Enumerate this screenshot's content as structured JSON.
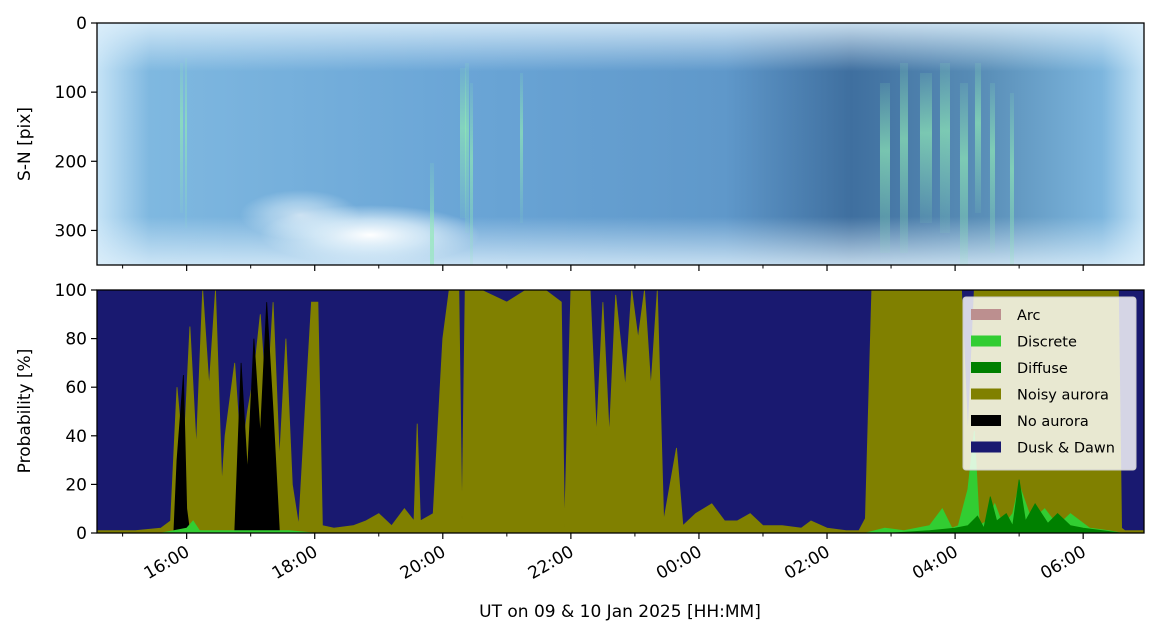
{
  "chart_data": [
    {
      "type": "heatmap",
      "description_free": true,
      "ylabel": "S-N [pix]",
      "ylim": [
        350,
        0
      ],
      "yticks": [
        0,
        100,
        200,
        300
      ],
      "colors": {
        "sky_light": "#a9d3ee",
        "sky_mid": "#5d9bd0",
        "sky_dark": "#3f6f9f",
        "aurora_green": "#7fe7a6",
        "glow_white": "#ffffff"
      }
    },
    {
      "type": "area",
      "ylabel": "Probability [%]",
      "xlabel": "UT on 09 & 10 Jan 2025 [HH:MM]",
      "ylim": [
        0,
        100
      ],
      "yticks": [
        0,
        20,
        40,
        60,
        80,
        100
      ],
      "xlim_hours": [
        14.6,
        30.95
      ],
      "xticks": [
        {
          "h": 16,
          "label": "16:00"
        },
        {
          "h": 18,
          "label": "18:00"
        },
        {
          "h": 20,
          "label": "20:00"
        },
        {
          "h": 22,
          "label": "22:00"
        },
        {
          "h": 24,
          "label": "00:00"
        },
        {
          "h": 26,
          "label": "02:00"
        },
        {
          "h": 28,
          "label": "04:00"
        },
        {
          "h": 30,
          "label": "06:00"
        }
      ],
      "legend": {
        "position": "upper right",
        "entries": [
          {
            "label": "Arc",
            "color": "#bc8f8f"
          },
          {
            "label": "Discrete",
            "color": "#32cd32"
          },
          {
            "label": "Diffuse",
            "color": "#008000"
          },
          {
            "label": "Noisy aurora",
            "color": "#808000"
          },
          {
            "label": "No aurora",
            "color": "#000000"
          },
          {
            "label": "Dusk & Dawn",
            "color": "#191970"
          }
        ]
      },
      "series": [
        {
          "name": "Noisy aurora",
          "color": "#808000",
          "points": [
            [
              14.6,
              1
            ],
            [
              15.2,
              1
            ],
            [
              15.6,
              2
            ],
            [
              15.75,
              5
            ],
            [
              15.85,
              60
            ],
            [
              15.95,
              30
            ],
            [
              16.05,
              85
            ],
            [
              16.15,
              35
            ],
            [
              16.25,
              100
            ],
            [
              16.35,
              60
            ],
            [
              16.45,
              100
            ],
            [
              16.55,
              20
            ],
            [
              16.6,
              40
            ],
            [
              16.75,
              70
            ],
            [
              16.85,
              30
            ],
            [
              16.95,
              50
            ],
            [
              17.05,
              65
            ],
            [
              17.15,
              90
            ],
            [
              17.25,
              50
            ],
            [
              17.35,
              95
            ],
            [
              17.45,
              30
            ],
            [
              17.55,
              80
            ],
            [
              17.65,
              20
            ],
            [
              17.75,
              3
            ],
            [
              17.85,
              50
            ],
            [
              17.95,
              95
            ],
            [
              18.05,
              95
            ],
            [
              18.12,
              3
            ],
            [
              18.3,
              2
            ],
            [
              18.6,
              3
            ],
            [
              18.8,
              5
            ],
            [
              19.0,
              8
            ],
            [
              19.2,
              3
            ],
            [
              19.4,
              10
            ],
            [
              19.55,
              5
            ],
            [
              19.6,
              45
            ],
            [
              19.65,
              5
            ],
            [
              19.85,
              8
            ],
            [
              20.0,
              80
            ],
            [
              20.1,
              100
            ],
            [
              20.25,
              100
            ],
            [
              20.3,
              5
            ],
            [
              20.35,
              100
            ],
            [
              20.6,
              100
            ],
            [
              21.0,
              95
            ],
            [
              21.3,
              100
            ],
            [
              21.6,
              100
            ],
            [
              21.85,
              95
            ],
            [
              21.9,
              2
            ],
            [
              22.0,
              100
            ],
            [
              22.3,
              100
            ],
            [
              22.4,
              40
            ],
            [
              22.5,
              95
            ],
            [
              22.6,
              40
            ],
            [
              22.7,
              98
            ],
            [
              22.85,
              60
            ],
            [
              22.95,
              100
            ],
            [
              23.05,
              80
            ],
            [
              23.15,
              100
            ],
            [
              23.25,
              60
            ],
            [
              23.35,
              100
            ],
            [
              23.45,
              5
            ],
            [
              23.65,
              35
            ],
            [
              23.75,
              3
            ],
            [
              23.95,
              8
            ],
            [
              24.2,
              12
            ],
            [
              24.4,
              5
            ],
            [
              24.6,
              5
            ],
            [
              24.8,
              8
            ],
            [
              25.0,
              3
            ],
            [
              25.3,
              3
            ],
            [
              25.6,
              2
            ],
            [
              25.75,
              5
            ],
            [
              26.0,
              2
            ],
            [
              26.3,
              1
            ],
            [
              26.5,
              1
            ],
            [
              26.6,
              6
            ],
            [
              26.7,
              100
            ],
            [
              27.0,
              100
            ],
            [
              27.3,
              100
            ],
            [
              27.6,
              100
            ],
            [
              27.9,
              100
            ],
            [
              28.1,
              100
            ],
            [
              28.2,
              40
            ],
            [
              28.3,
              100
            ],
            [
              28.6,
              100
            ],
            [
              28.9,
              100
            ],
            [
              29.2,
              100
            ],
            [
              29.5,
              100
            ],
            [
              29.8,
              100
            ],
            [
              30.1,
              100
            ],
            [
              30.4,
              100
            ],
            [
              30.55,
              100
            ],
            [
              30.6,
              2
            ],
            [
              30.65,
              1
            ],
            [
              30.95,
              1
            ]
          ]
        },
        {
          "name": "No aurora",
          "color": "#000000",
          "points": [
            [
              15.8,
              0
            ],
            [
              15.85,
              30
            ],
            [
              15.95,
              65
            ],
            [
              16.0,
              10
            ],
            [
              16.05,
              0
            ],
            [
              16.75,
              0
            ],
            [
              16.85,
              70
            ],
            [
              16.95,
              25
            ],
            [
              17.05,
              80
            ],
            [
              17.15,
              40
            ],
            [
              17.25,
              95
            ],
            [
              17.35,
              50
            ],
            [
              17.45,
              0
            ]
          ]
        },
        {
          "name": "Discrete",
          "color": "#32cd32",
          "points": [
            [
              15.6,
              0
            ],
            [
              15.8,
              1
            ],
            [
              16.0,
              2
            ],
            [
              16.1,
              5
            ],
            [
              16.2,
              1
            ],
            [
              16.8,
              1
            ],
            [
              17.6,
              1
            ],
            [
              18.0,
              0
            ],
            [
              26.6,
              0
            ],
            [
              26.9,
              2
            ],
            [
              27.2,
              1
            ],
            [
              27.6,
              3
            ],
            [
              27.8,
              10
            ],
            [
              27.95,
              2
            ],
            [
              28.05,
              3
            ],
            [
              28.2,
              18
            ],
            [
              28.3,
              42
            ],
            [
              28.38,
              3
            ],
            [
              28.5,
              5
            ],
            [
              28.62,
              12
            ],
            [
              28.75,
              3
            ],
            [
              28.9,
              8
            ],
            [
              29.0,
              20
            ],
            [
              29.2,
              5
            ],
            [
              29.4,
              10
            ],
            [
              29.6,
              3
            ],
            [
              29.8,
              8
            ],
            [
              30.1,
              2
            ],
            [
              30.4,
              1
            ],
            [
              30.6,
              0
            ]
          ]
        },
        {
          "name": "Diffuse",
          "color": "#008000",
          "points": [
            [
              27.0,
              0
            ],
            [
              27.6,
              1
            ],
            [
              28.0,
              2
            ],
            [
              28.2,
              3
            ],
            [
              28.35,
              7
            ],
            [
              28.45,
              2
            ],
            [
              28.55,
              15
            ],
            [
              28.65,
              5
            ],
            [
              28.8,
              8
            ],
            [
              28.9,
              3
            ],
            [
              29.0,
              22
            ],
            [
              29.1,
              5
            ],
            [
              29.25,
              12
            ],
            [
              29.45,
              4
            ],
            [
              29.6,
              8
            ],
            [
              29.8,
              3
            ],
            [
              30.0,
              2
            ],
            [
              30.3,
              1
            ],
            [
              30.6,
              0
            ]
          ]
        }
      ]
    }
  ]
}
